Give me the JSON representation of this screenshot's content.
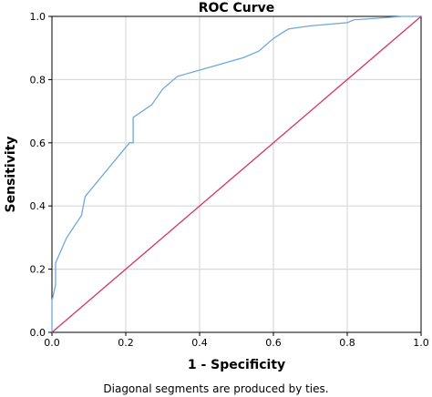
{
  "chart_data": {
    "type": "line",
    "title": "ROC Curve",
    "xlabel": "1 - Specificity",
    "ylabel": "Sensitivity",
    "footnote": "Diagonal segments are produced by ties.",
    "xlim": [
      0,
      1
    ],
    "ylim": [
      0,
      1
    ],
    "x_ticks": [
      "0.0",
      "0.2",
      "0.4",
      "0.6",
      "0.8",
      "1.0"
    ],
    "y_ticks": [
      "0.0",
      "0.2",
      "0.4",
      "0.6",
      "0.8",
      "1.0"
    ],
    "grid": true,
    "series": [
      {
        "color": "#6fa8dc",
        "x": [
          0.0,
          0.0,
          0.01,
          0.01,
          0.01,
          0.04,
          0.08,
          0.09,
          0.21,
          0.22,
          0.22,
          0.27,
          0.3,
          0.34,
          0.4,
          0.46,
          0.52,
          0.56,
          0.6,
          0.64,
          0.7,
          0.8,
          0.82,
          0.83,
          0.95,
          1.0
        ],
        "y": [
          0.0,
          0.1,
          0.15,
          0.2,
          0.22,
          0.3,
          0.37,
          0.43,
          0.6,
          0.6,
          0.68,
          0.72,
          0.77,
          0.81,
          0.83,
          0.85,
          0.87,
          0.89,
          0.93,
          0.96,
          0.97,
          0.98,
          0.99,
          0.99,
          1.0,
          1.0
        ]
      },
      {
        "color": "#d6336c",
        "x": [
          0,
          1
        ],
        "y": [
          0,
          1
        ]
      }
    ],
    "colors": {
      "grid": "#d9d9d9",
      "frame": "#000000"
    }
  }
}
